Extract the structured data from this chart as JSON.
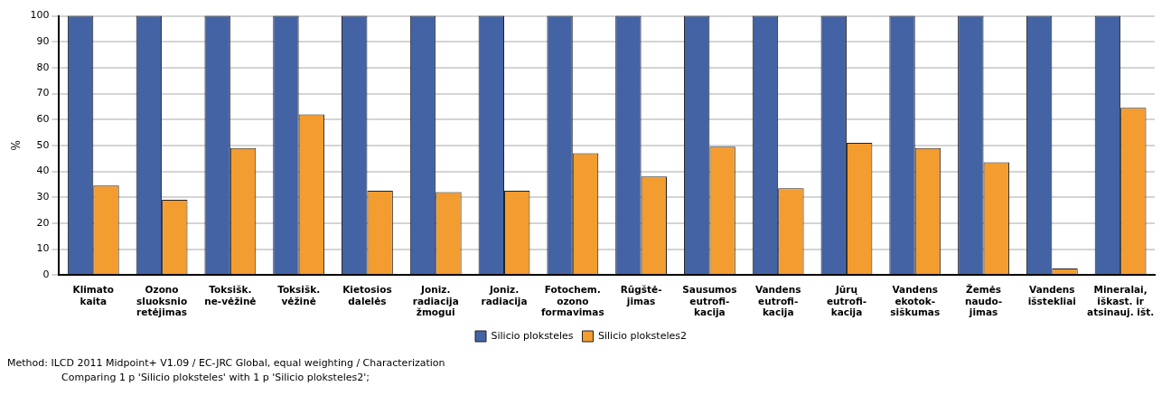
{
  "chart_data": {
    "type": "bar",
    "ylabel": "%",
    "categories": [
      "Klimato\nkaita",
      "Ozono\nsluoksnio\nretėjimas",
      "Toksišk.\nne-vėžinė",
      "Toksišk.\nvėžinė",
      "Kietosios\ndalelės",
      "Joniz.\nradiacija\nžmogui",
      "Joniz.\nradiacija",
      "Fotochem.\nozono\nformavimas",
      "Rūgštė-\njimas",
      "Sausumos\neutrofi-\nkacija",
      "Vandens\neutrofi-\nkacija",
      "Jūrų\neutrofi-\nkacija",
      "Vandens\nekotok-\nsiškumas",
      "Žemės\nnaudo-\njimas",
      "Vandens\nišstekliai",
      "Mineralai,\niškast. ir\natsinauj. išt."
    ],
    "series": [
      {
        "name": "Silicio ploksteles",
        "color": "#4463a5",
        "values": [
          100,
          100,
          100,
          100,
          100,
          100,
          100,
          100,
          100,
          100,
          100,
          100,
          100,
          100,
          100,
          100
        ]
      },
      {
        "name": "Silicio ploksteles2",
        "color": "#f39c30",
        "values": [
          34.5,
          29,
          49,
          62,
          32.5,
          32,
          32.5,
          47,
          38,
          49.5,
          33.5,
          51,
          49,
          43.5,
          2.5,
          64.5
        ]
      }
    ],
    "ylim": [
      0,
      100
    ],
    "yticks": [
      0,
      10,
      20,
      30,
      40,
      50,
      60,
      70,
      80,
      90,
      100
    ],
    "grid": "y",
    "legend": "bottom",
    "annotations": [
      "Method: ILCD 2011 Midpoint+ V1.09 / EC-JRC Global, equal weighting / Characterization",
      "Comparing 1 p 'Silicio ploksteles' with 1 p 'Silicio ploksteles2';"
    ]
  }
}
